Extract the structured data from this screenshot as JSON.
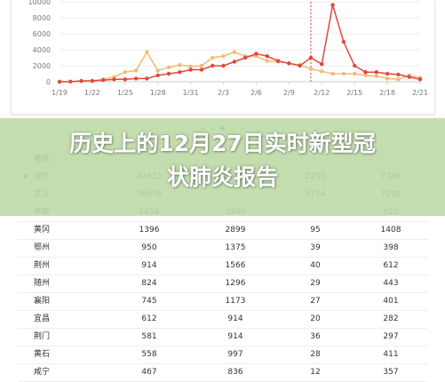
{
  "chart_data": {
    "type": "line",
    "x": [
      "1/19",
      "1/20",
      "1/21",
      "1/22",
      "1/23",
      "1/24",
      "1/25",
      "1/26",
      "1/27",
      "1/28",
      "1/29",
      "1/30",
      "1/31",
      "2/1",
      "2/2",
      "2/3",
      "2/4",
      "2/5",
      "2/6",
      "2/7",
      "2/8",
      "2/9",
      "2/10",
      "2/11",
      "2/12",
      "2/13",
      "2/14",
      "2/15",
      "2/16",
      "2/17",
      "2/18",
      "2/19",
      "2/20",
      "2/21"
    ],
    "xticks": [
      "1/19",
      "1/22",
      "1/25",
      "1/28",
      "1/31",
      "2/3",
      "2/6",
      "2/9",
      "2/12",
      "2/15",
      "2/18",
      "2/21"
    ],
    "yticks": [
      "10000",
      "8000",
      "6000",
      "4000",
      "2000",
      "0"
    ],
    "ylim": [
      0,
      10000
    ],
    "series": [
      {
        "color": "#f5b977",
        "values": [
          0,
          10,
          90,
          100,
          300,
          600,
          1200,
          1400,
          3700,
          1400,
          1800,
          2100,
          1900,
          2000,
          3000,
          3200,
          3700,
          3200,
          3200,
          2600,
          2500,
          2300,
          2100,
          1600,
          1300,
          1000,
          1000,
          1000,
          800,
          700,
          400,
          300,
          800,
          500
        ]
      },
      {
        "color": "#e0483c",
        "values": [
          0,
          20,
          100,
          120,
          200,
          300,
          300,
          400,
          400,
          800,
          1000,
          1200,
          1500,
          1500,
          2000,
          2000,
          2500,
          3000,
          3500,
          3200,
          2600,
          2300,
          2000,
          3000,
          2200,
          9600,
          5000,
          2000,
          1200,
          1200,
          1000,
          900,
          600,
          300
        ]
      }
    ],
    "dashed_marker_x": "2/11",
    "grid": "horizontal"
  },
  "carousel": {
    "count": 5,
    "active": 2
  },
  "overlay": {
    "line1": "历史上的12月27日实时新型冠",
    "line2": "状肺炎报告"
  },
  "table": {
    "header": {
      "cells": [
        "地区",
        "",
        "",
        "",
        ""
      ]
    },
    "region": {
      "cells": [
        "湖北",
        "47623",
        "63454",
        "2250",
        "7386"
      ]
    },
    "rows": [
      {
        "cells": [
          "武汉",
          "36678",
          "",
          "1774",
          "7210"
        ]
      },
      {
        "cells": [
          "孝感",
          "2414",
          "3248",
          "",
          "622"
        ]
      },
      {
        "cells": [
          "黄冈",
          "1396",
          "2899",
          "95",
          "1408"
        ]
      },
      {
        "cells": [
          "鄂州",
          "950",
          "1375",
          "39",
          "398"
        ]
      },
      {
        "cells": [
          "荆州",
          "914",
          "1566",
          "40",
          "612"
        ]
      },
      {
        "cells": [
          "随州",
          "824",
          "1296",
          "29",
          "443"
        ]
      },
      {
        "cells": [
          "襄阳",
          "745",
          "1173",
          "27",
          "401"
        ]
      },
      {
        "cells": [
          "宜昌",
          "612",
          "914",
          "20",
          "282"
        ]
      },
      {
        "cells": [
          "荆门",
          "581",
          "914",
          "36",
          "297"
        ]
      },
      {
        "cells": [
          "黄石",
          "558",
          "997",
          "28",
          "411"
        ]
      },
      {
        "cells": [
          "咸宁",
          "467",
          "836",
          "12",
          "357"
        ]
      }
    ]
  }
}
